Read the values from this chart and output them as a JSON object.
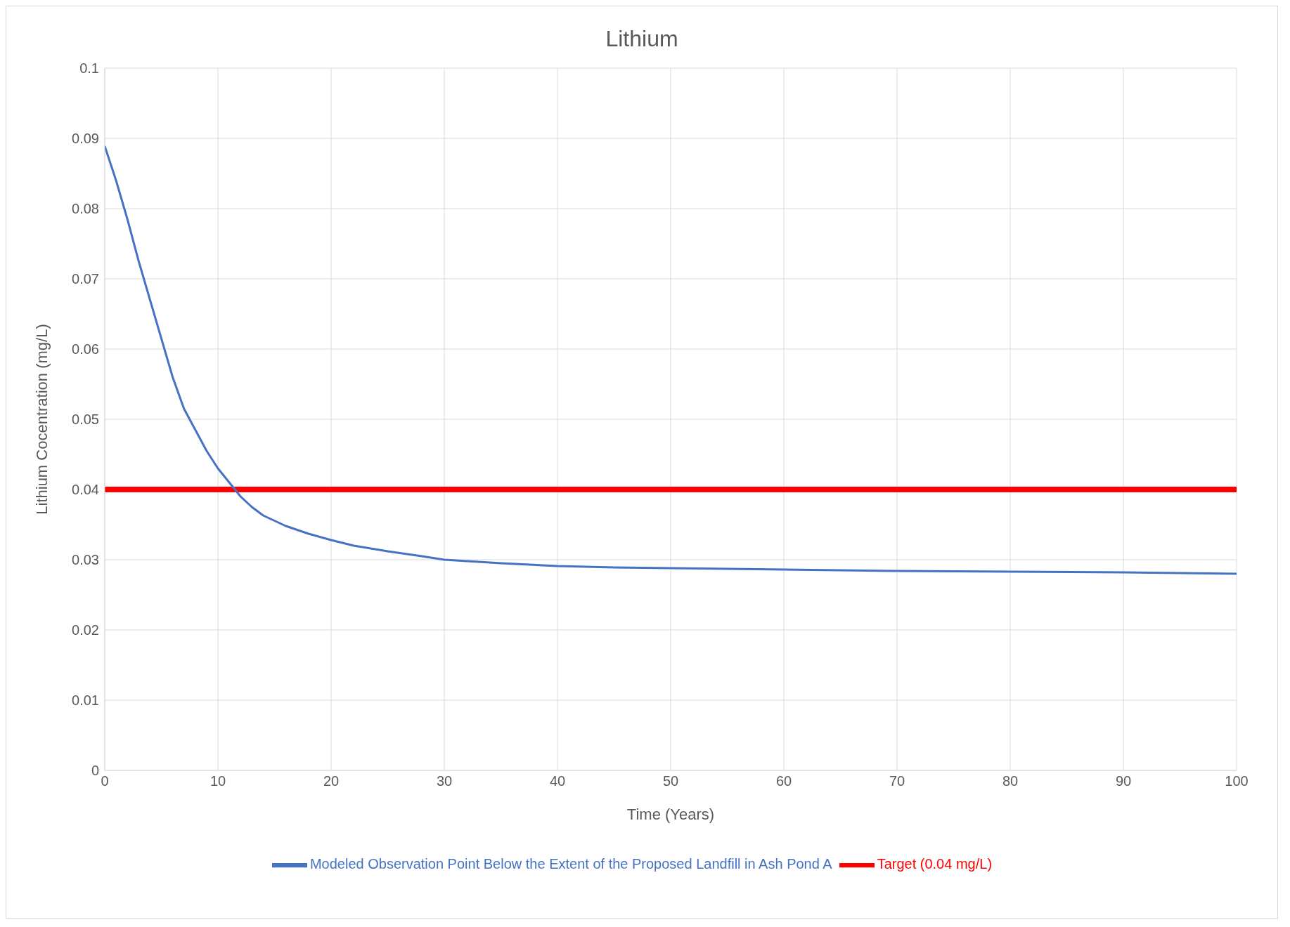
{
  "chart_data": {
    "type": "line",
    "title": "Lithium",
    "xlabel": "Time (Years)",
    "ylabel": "Lithium Cocentration (mg/L)",
    "xlim": [
      0,
      100
    ],
    "xticks": [
      0,
      10,
      20,
      30,
      40,
      50,
      60,
      70,
      80,
      90,
      100
    ],
    "ylim": [
      0,
      0.1
    ],
    "yticks": [
      0,
      0.01,
      0.02,
      0.03,
      0.04,
      0.05,
      0.06,
      0.07,
      0.08,
      0.09,
      0.1
    ],
    "grid": true,
    "legend": "bottom",
    "marker": "none",
    "line_style": "solid",
    "series": [
      {
        "name": "Target (0.04 mg/L)",
        "color": "#ff0000",
        "x": [
          0,
          100
        ],
        "values": [
          0.04,
          0.04
        ]
      },
      {
        "name": "Modeled Observation Point Below the Extent of the Proposed Landfill in Ash Pond A",
        "color": "#4472c4",
        "x": [
          0,
          1,
          2,
          3,
          4,
          5,
          6,
          7,
          8,
          9,
          10,
          11,
          12,
          13,
          14,
          16,
          18,
          20,
          22,
          25,
          28,
          30,
          35,
          40,
          45,
          50,
          60,
          70,
          80,
          90,
          100
        ],
        "values": [
          0.0889,
          0.084,
          0.0785,
          0.0725,
          0.067,
          0.0615,
          0.056,
          0.0515,
          0.0485,
          0.0455,
          0.043,
          0.041,
          0.039,
          0.0375,
          0.0363,
          0.0348,
          0.0337,
          0.0328,
          0.032,
          0.0312,
          0.0305,
          0.03,
          0.0295,
          0.0291,
          0.0289,
          0.0288,
          0.0286,
          0.0284,
          0.0283,
          0.0282,
          0.028
        ]
      }
    ]
  }
}
